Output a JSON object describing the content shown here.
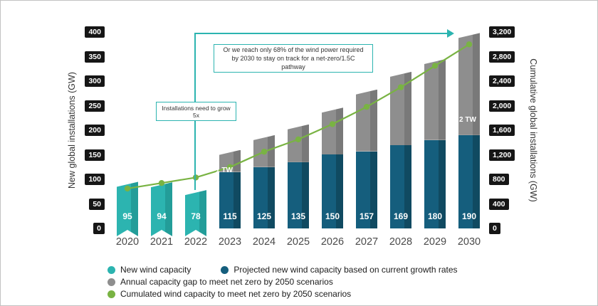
{
  "chart_data": {
    "type": "bar+line",
    "accent_color": "#2cb4b0",
    "categories": [
      "2020",
      "2021",
      "2022",
      "2023",
      "2024",
      "2025",
      "2026",
      "2027",
      "2028",
      "2029",
      "2030"
    ],
    "left_axis": {
      "label": "New global installations (GW)",
      "ticks": [
        "400",
        "350",
        "300",
        "250",
        "200",
        "150",
        "100",
        "50",
        "0"
      ],
      "max": 400
    },
    "right_axis": {
      "label": "Cumulative global installations (GW)",
      "ticks": [
        "3,200",
        "2,800",
        "2,400",
        "2,000",
        "1,600",
        "1,200",
        "800",
        "400",
        "0"
      ],
      "max": 3200
    },
    "series": [
      {
        "name": "New wind capacity",
        "type": "bar",
        "color": "#2cb4b0",
        "color_dark": "#239d99",
        "values": [
          95,
          94,
          78,
          null,
          null,
          null,
          null,
          null,
          null,
          null,
          null
        ]
      },
      {
        "name": "Projected new wind capacity based on current growth rates",
        "type": "bar",
        "color": "#155e7d",
        "color_dark": "#104a61",
        "values": [
          null,
          null,
          null,
          115,
          125,
          135,
          150,
          157,
          169,
          180,
          190
        ]
      },
      {
        "name": "Annual capacity gap to meet net zero by 2050 scenarios",
        "type": "bar-stacked-on-previous",
        "color": "#8e8e8e",
        "color_dark": "#797979",
        "values": [
          null,
          null,
          null,
          45,
          65,
          77,
          96,
          126,
          150,
          165,
          208
        ]
      },
      {
        "name": "Cumulated wind capacity to meet net zero by 2050 scenarios",
        "type": "line",
        "axis": "right",
        "color": "#79b343",
        "values": [
          650,
          740,
          830,
          1000,
          1250,
          1450,
          1700,
          1980,
          2300,
          2650,
          3000
        ]
      }
    ],
    "bar_value_labels": [
      "95",
      "94",
      "78",
      "115",
      "125",
      "135",
      "150",
      "157",
      "169",
      "180",
      "190"
    ],
    "annotations": {
      "grow5x": "Installations need to grow 5x",
      "reach68": "Or we reach only 68% of the wind power required by 2030 to stay on track for a net-zero/1.5C pathway",
      "milestone_1tw": "1 TW",
      "milestone_2tw": "2 TW"
    }
  },
  "legend": [
    {
      "label": "New wind capacity",
      "color": "#2cb4b0"
    },
    {
      "label": "Projected new wind capacity based on current growth rates",
      "color": "#155e7d"
    },
    {
      "label": "Annual capacity gap to meet net zero by 2050 scenarios",
      "color": "#8e8e8e"
    },
    {
      "label": "Cumulated wind capacity to meet net zero by 2050 scenarios",
      "color": "#79b343"
    }
  ]
}
